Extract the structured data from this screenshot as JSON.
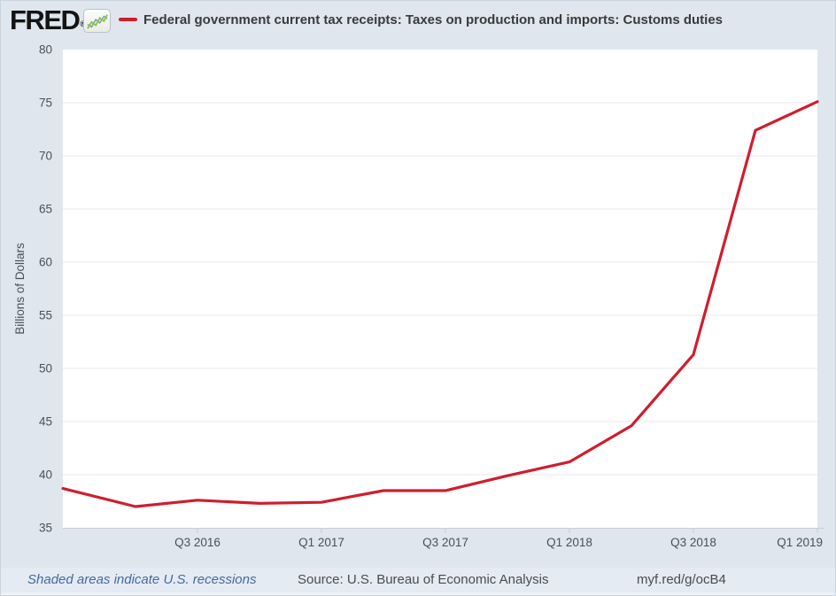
{
  "header": {
    "logo_text": "FRED",
    "registered_mark": "®",
    "series_title": "Federal government current tax receipts: Taxes on production and imports: Customs duties"
  },
  "chart_data": {
    "type": "line",
    "title": "Federal government current tax receipts: Taxes on production and imports: Customs duties",
    "categories": [
      "Q1 2016",
      "Q2 2016",
      "Q3 2016",
      "Q4 2016",
      "Q1 2017",
      "Q2 2017",
      "Q3 2017",
      "Q4 2017",
      "Q1 2018",
      "Q2 2018",
      "Q3 2018",
      "Q4 2018",
      "Q1 2019"
    ],
    "values": [
      38.7,
      37.0,
      37.6,
      37.3,
      37.4,
      38.5,
      38.5,
      39.9,
      41.2,
      44.6,
      51.3,
      72.4,
      75.1
    ],
    "x_tick_labels": [
      "Q3 2016",
      "Q1 2017",
      "Q3 2017",
      "Q1 2018",
      "Q3 2018",
      "Q1 2019"
    ],
    "y_ticks": [
      35,
      40,
      45,
      50,
      55,
      60,
      65,
      70,
      75,
      80
    ],
    "xlabel": "",
    "ylabel": "Billions of Dollars",
    "ylim": [
      35,
      80
    ],
    "grid": true,
    "legend_position": "top-header",
    "line_color": "#cf1e2e"
  },
  "footer": {
    "recession_note": "Shaded areas indicate U.S. recessions",
    "source": "Source: U.S. Bureau of Economic Analysis",
    "short_url": "myf.red/g/ocB4"
  },
  "colors": {
    "background": "#dfe6ee",
    "plot_background": "#ffffff",
    "accent_red": "#cf1e2e",
    "gridline": "#e8e8e8",
    "axis": "#c8ced6",
    "link_blue": "#44699e"
  }
}
